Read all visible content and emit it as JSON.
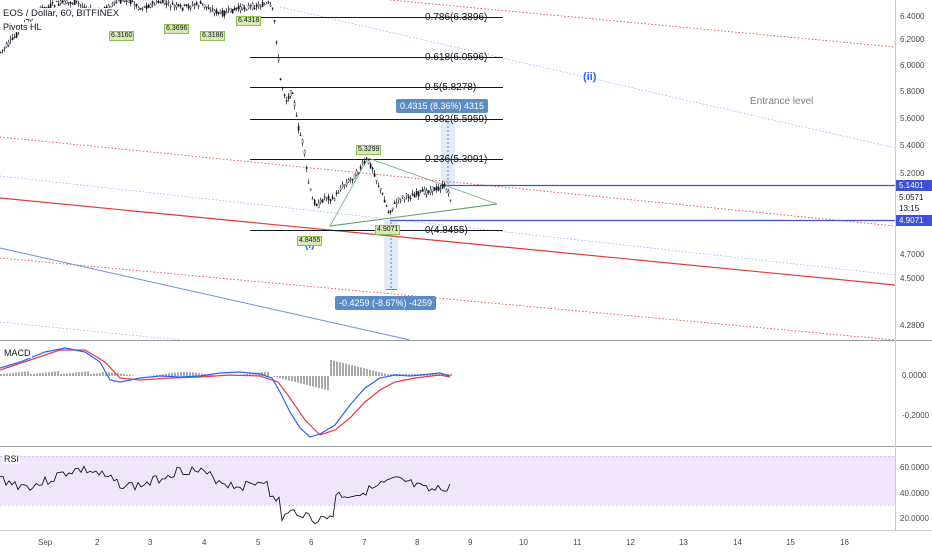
{
  "header": {
    "symbol_line": "EOS / Dollar, 60, BITFINEX",
    "indicator": "Pivots HL"
  },
  "pivot_labels": [
    "6.3160",
    "6.3696",
    "6.3186",
    "6.4318"
  ],
  "fib_levels": [
    {
      "label": "0.786(6.3896)",
      "price": 6.3896
    },
    {
      "label": "0.618(6.0596)",
      "price": 6.0596
    },
    {
      "label": "0.5(5.8278)",
      "price": 5.8278
    },
    {
      "label": "0.382(5.5959)",
      "price": 5.5959
    },
    {
      "label": "0.236(5.3091)",
      "price": 5.3091
    },
    {
      "label": "0(4.8455)",
      "price": 4.8455
    }
  ],
  "annotations": {
    "wave_ii": "(ii)",
    "wave_i": "(i)",
    "entrance": "Entrance level",
    "peak_label": "5.3299",
    "low_label_1": "4.8455",
    "low_label_2": "4.9071",
    "measure_up": "0.4315 (8.36%) 4315",
    "measure_down": "-0.4259 (-8.67%) -4259"
  },
  "price_tags": {
    "upper": "5.1401",
    "last": "5.0571",
    "countdown": "13:15",
    "lower": "4.9071"
  },
  "price_axis": [
    "6.4000",
    "6.2000",
    "6.0000",
    "5.8000",
    "5.6000",
    "5.4000",
    "5.2000",
    "4.7000",
    "4.5000",
    "4.2800"
  ],
  "macd": {
    "title": "MACD",
    "axis": [
      "0.0000",
      "-0.2000"
    ]
  },
  "rsi": {
    "title": "RSI",
    "axis": [
      "60.0000",
      "40.0000",
      "20.0000"
    ]
  },
  "time_axis": [
    "Sep",
    "2",
    "3",
    "4",
    "5",
    "6",
    "7",
    "8",
    "9",
    "10",
    "11",
    "12",
    "13",
    "14",
    "15",
    "16"
  ],
  "colors": {
    "candle": "#131722",
    "blue_line": "#3f51d8",
    "red_line": "#e53935",
    "macd_line": "#2962ff",
    "signal_line": "#f23645",
    "histogram": "#a9a9a9",
    "rsi_band": "#efe6fb",
    "measure_box": "#5b8cc8",
    "wave_label": "#2962ff"
  }
}
